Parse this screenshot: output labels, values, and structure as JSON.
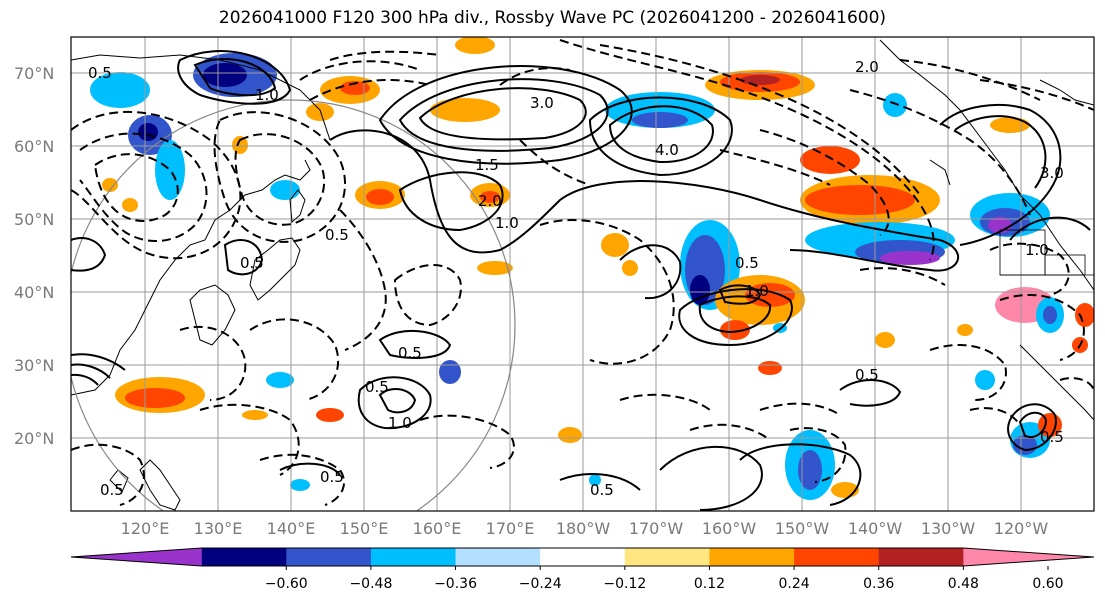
{
  "title": "2026041000 F120 300 hPa div., Rossby Wave PC (2026041200 - 2026041600)",
  "lat_labels": [
    "70°N",
    "60°N",
    "50°N",
    "40°N",
    "30°N",
    "20°N"
  ],
  "lon_labels": [
    "120°E",
    "130°E",
    "140°E",
    "150°E",
    "160°E",
    "170°E",
    "180°W",
    "170°W",
    "160°W",
    "150°W",
    "140°W",
    "130°W",
    "120°W"
  ],
  "colorbar": {
    "ticks": [
      "−0.60",
      "−0.48",
      "−0.36",
      "−0.24",
      "−0.12",
      "0.12",
      "0.24",
      "0.36",
      "0.48",
      "0.60"
    ],
    "colors": [
      "#9933cc",
      "#000080",
      "#3355cc",
      "#00bfff",
      "#b3e0ff",
      "#ffffff",
      "#ffe680",
      "#ffa500",
      "#ff4500",
      "#b22222",
      "#ff88aa"
    ]
  },
  "contour_labels": [
    "0.5",
    "1.0",
    "1.5",
    "2.0",
    "3.0",
    "4.0",
    "0.5",
    "1.0",
    "0.5",
    "0.5",
    "1.0",
    "0.5",
    "0.5",
    "0.5",
    "0.5",
    "0.5",
    "0.5",
    "1.0",
    "1.0",
    "2.0",
    "3.0",
    "0.5"
  ]
}
